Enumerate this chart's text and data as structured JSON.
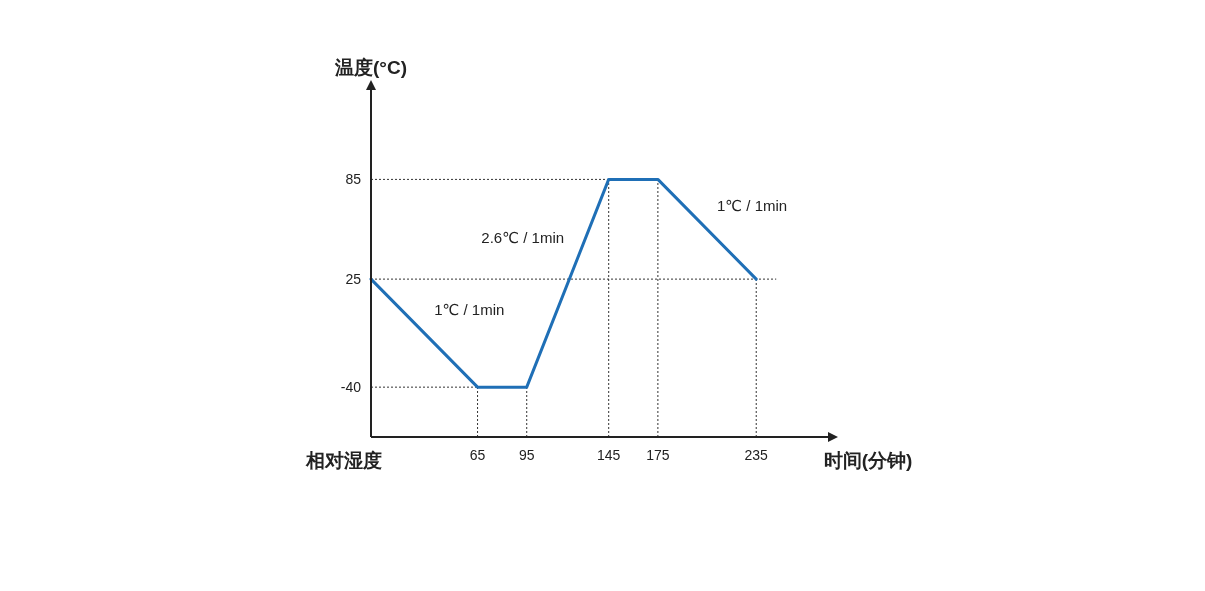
{
  "chart_data": {
    "type": "line",
    "xlabel": "时间(分钟)",
    "ylabel": "温度(°C)",
    "x": [
      0,
      65,
      95,
      145,
      175,
      235
    ],
    "series": [
      {
        "color": "#1f6fb6",
        "values": [
          25,
          -40,
          -40,
          85,
          85,
          25
        ]
      }
    ],
    "xlim": [
      0,
      280
    ],
    "ylim": [
      -70,
      140
    ],
    "xticks": [
      65,
      95,
      145,
      175,
      235
    ],
    "yticks": [
      -40,
      25,
      85
    ],
    "grid": false,
    "marker": "none",
    "line_style": "solid",
    "ref_lines": [
      {
        "axis": "y",
        "value": 85,
        "line_style": "dotted",
        "color": "#333333"
      },
      {
        "axis": "y",
        "value": 25,
        "line_style": "dotted",
        "color": "#333333"
      },
      {
        "axis": "y",
        "value": -40,
        "line_style": "dotted",
        "color": "#333333"
      },
      {
        "axis": "x",
        "value": 65,
        "line_style": "dotted",
        "color": "#333333"
      },
      {
        "axis": "x",
        "value": 95,
        "line_style": "dotted",
        "color": "#333333"
      },
      {
        "axis": "x",
        "value": 145,
        "line_style": "dotted",
        "color": "#333333"
      },
      {
        "axis": "x",
        "value": 175,
        "line_style": "dotted",
        "color": "#333333"
      },
      {
        "axis": "x",
        "value": 235,
        "line_style": "dotted",
        "color": "#333333"
      }
    ],
    "annotations": [
      "1℃ / 1min",
      "2.6℃ / 1min",
      "1℃ / 1min",
      "相对湿度"
    ]
  }
}
